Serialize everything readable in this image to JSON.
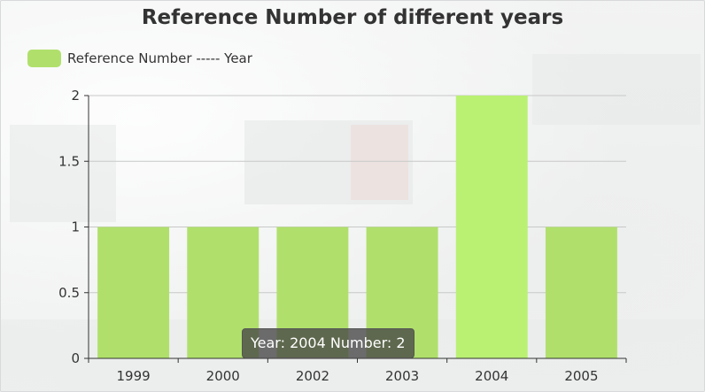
{
  "chart_data": {
    "type": "bar",
    "title": "Reference Number of different years",
    "legend": {
      "label": "Reference Number ----- Year",
      "position": "top-left"
    },
    "categories": [
      "1999",
      "2000",
      "2002",
      "2003",
      "2004",
      "2005"
    ],
    "values": [
      1,
      1,
      1,
      1,
      2,
      1
    ],
    "highlighted_index": 4,
    "ylim": [
      0,
      2
    ],
    "yticks": [
      "0",
      "0.5",
      "1",
      "1.5",
      "2"
    ],
    "grid": true,
    "colors": {
      "bar": "#b0e06b",
      "bar_highlight": "#baf173",
      "grid": "#c8c8c8",
      "axis": "#333333"
    },
    "tooltip": "Year: 2004 Number: 2"
  }
}
